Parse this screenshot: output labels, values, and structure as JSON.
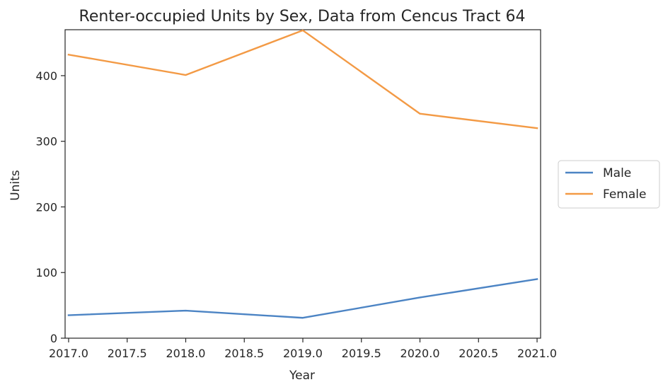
{
  "chart_data": {
    "type": "line",
    "title": "Renter-occupied Units by Sex, Data from Cencus Tract 64",
    "xlabel": "Year",
    "ylabel": "Units",
    "x": [
      2017,
      2018,
      2019,
      2020,
      2021
    ],
    "xlim": [
      2016.97,
      2021.03
    ],
    "ylim": [
      0,
      470
    ],
    "xticks": [
      2017.0,
      2017.5,
      2018.0,
      2018.5,
      2019.0,
      2019.5,
      2020.0,
      2020.5,
      2021.0
    ],
    "xtick_labels": [
      "2017.0",
      "2017.5",
      "2018.0",
      "2018.5",
      "2019.0",
      "2019.5",
      "2020.0",
      "2020.5",
      "2021.0"
    ],
    "yticks": [
      0,
      100,
      200,
      300,
      400
    ],
    "ytick_labels": [
      "0",
      "100",
      "200",
      "300",
      "400"
    ],
    "grid": false,
    "legend_position": "outside-right",
    "series": [
      {
        "name": "Male",
        "color": "#4c84c4",
        "values": [
          35,
          42,
          31,
          62,
          90
        ]
      },
      {
        "name": "Female",
        "color": "#f39a45",
        "values": [
          432,
          401,
          469,
          342,
          320
        ]
      }
    ]
  }
}
